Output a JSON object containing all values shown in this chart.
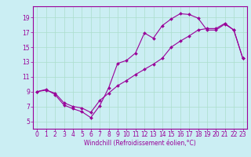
{
  "xlabel": "Windchill (Refroidissement éolien,°C)",
  "bg_color": "#cbeef3",
  "line_color": "#990099",
  "grid_color": "#aaddcc",
  "xlim": [
    -0.5,
    23.5
  ],
  "ylim": [
    4.0,
    20.5
  ],
  "xticks": [
    0,
    1,
    2,
    3,
    4,
    5,
    6,
    7,
    8,
    9,
    10,
    11,
    12,
    13,
    14,
    15,
    16,
    17,
    18,
    19,
    20,
    21,
    22,
    23
  ],
  "yticks": [
    5,
    7,
    9,
    11,
    13,
    15,
    17,
    19
  ],
  "upper_x": [
    0,
    1,
    2,
    3,
    4,
    5,
    6,
    7,
    8,
    9,
    10,
    11,
    12,
    13,
    14,
    15,
    16,
    17,
    18,
    19,
    20,
    21,
    22,
    23
  ],
  "upper_y": [
    9.0,
    9.3,
    8.6,
    7.2,
    6.7,
    6.3,
    5.5,
    7.1,
    9.5,
    12.8,
    13.2,
    14.2,
    16.9,
    16.2,
    17.9,
    18.8,
    19.5,
    19.4,
    18.9,
    17.3,
    17.3,
    18.1,
    17.3,
    13.5
  ],
  "lower_x": [
    0,
    1,
    2,
    3,
    4,
    5,
    6,
    7,
    8,
    9,
    10,
    11,
    12,
    13,
    14,
    15,
    16,
    17,
    18,
    19,
    20,
    21,
    22,
    23
  ],
  "lower_y": [
    9.0,
    9.2,
    8.8,
    7.5,
    7.0,
    6.8,
    6.2,
    7.8,
    8.8,
    9.8,
    10.5,
    11.3,
    12.0,
    12.7,
    13.5,
    15.0,
    15.8,
    16.5,
    17.3,
    17.5,
    17.5,
    18.2,
    17.3,
    13.5
  ],
  "tick_fontsize": 5.5,
  "label_fontsize": 5.5
}
